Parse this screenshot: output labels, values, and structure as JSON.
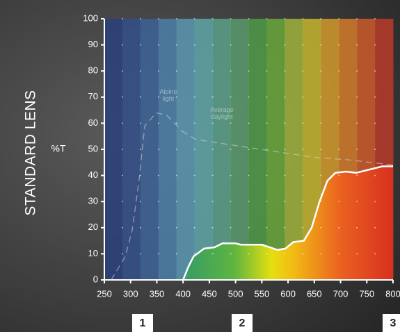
{
  "chart_data": {
    "type": "line",
    "ylabel": "%T",
    "series": [
      {
        "name": "STANDARD LENS",
        "color": "#ffffff",
        "style": "solid",
        "x": [
          400,
          410,
          420,
          440,
          460,
          475,
          490,
          500,
          510,
          530,
          550,
          565,
          580,
          595,
          610,
          630,
          645,
          660,
          675,
          690,
          710,
          730,
          760,
          780,
          800
        ],
        "values": [
          0,
          5,
          9,
          12,
          12.5,
          14,
          14,
          14,
          13.5,
          13.5,
          13.5,
          12.5,
          11.5,
          12,
          14.5,
          15,
          20,
          30,
          38,
          41,
          41.5,
          41,
          42.5,
          43.5,
          43.5
        ]
      },
      {
        "name": "Alpine light",
        "color": "#d8d8d8",
        "style": "dashed",
        "x": [
          263,
          290,
          303,
          316,
          327,
          349,
          369,
          389,
          398
        ],
        "values": [
          0,
          9,
          19,
          38,
          59,
          64,
          63,
          59,
          57
        ]
      },
      {
        "name": "Average daylight",
        "color": "#d8d8d8",
        "style": "dashed",
        "x": [
          398,
          422,
          449,
          515,
          581,
          648,
          714,
          800
        ],
        "values": [
          57,
          54,
          53,
          51,
          49,
          47,
          46,
          44
        ]
      }
    ],
    "xlim": [
      250,
      800
    ],
    "ylim": [
      0,
      100
    ],
    "xticks": [
      250,
      300,
      350,
      400,
      450,
      500,
      550,
      600,
      650,
      700,
      750,
      800
    ],
    "yticks": [
      0,
      10,
      20,
      30,
      40,
      50,
      60,
      70,
      80,
      90,
      100
    ],
    "zone_labels": [
      "1",
      "2",
      "3"
    ]
  }
}
